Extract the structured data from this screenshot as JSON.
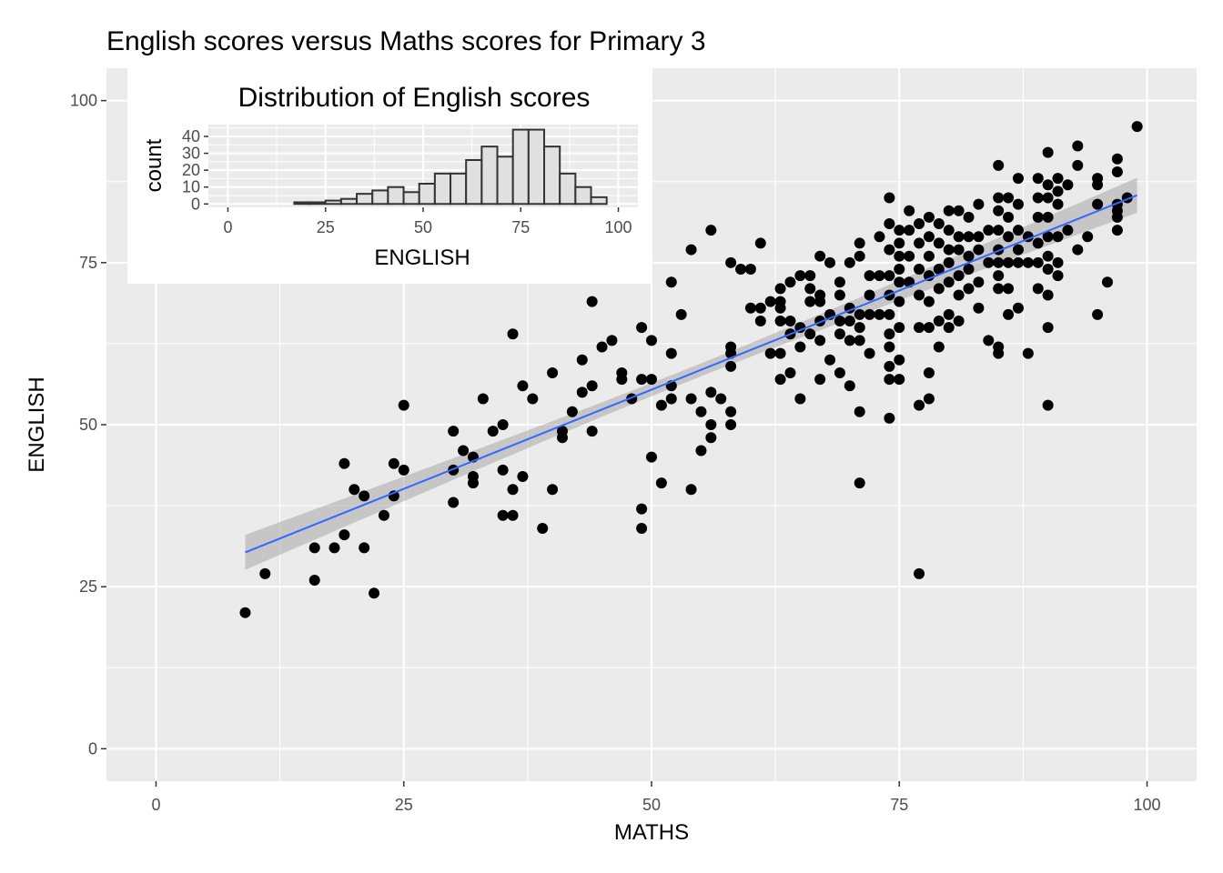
{
  "chart_data": [
    {
      "type": "scatter",
      "title": "English scores versus Maths scores for Primary 3",
      "xlabel": "MATHS",
      "ylabel": "ENGLISH",
      "xlim": [
        -5,
        105
      ],
      "ylim": [
        -5,
        105
      ],
      "x_ticks": [
        0,
        25,
        50,
        75,
        100
      ],
      "y_ticks": [
        0,
        25,
        50,
        75,
        100
      ],
      "grid": true,
      "fit_line": {
        "method": "lm",
        "x": [
          9,
          99
        ],
        "y": [
          30.3,
          85.4
        ],
        "ci_half_width_ends": 2.7,
        "ci_half_width_mid": 1.0,
        "color": "#3366ff",
        "band_color": "#999999"
      },
      "points": [
        [
          9,
          21
        ],
        [
          11,
          27
        ],
        [
          16,
          26
        ],
        [
          16,
          31
        ],
        [
          18,
          31
        ],
        [
          19,
          44
        ],
        [
          19,
          33
        ],
        [
          20,
          40
        ],
        [
          21,
          39
        ],
        [
          21,
          31
        ],
        [
          22,
          24
        ],
        [
          23,
          36
        ],
        [
          24,
          44
        ],
        [
          24,
          39
        ],
        [
          25,
          43
        ],
        [
          25,
          53
        ],
        [
          30,
          49
        ],
        [
          30,
          43
        ],
        [
          30,
          38
        ],
        [
          31,
          46
        ],
        [
          32,
          45
        ],
        [
          32,
          42
        ],
        [
          32,
          41
        ],
        [
          33,
          54
        ],
        [
          34,
          49
        ],
        [
          35,
          50
        ],
        [
          35,
          43
        ],
        [
          35,
          36
        ],
        [
          36,
          64
        ],
        [
          36,
          40
        ],
        [
          36,
          36
        ],
        [
          37,
          56
        ],
        [
          37,
          42
        ],
        [
          38,
          54
        ],
        [
          39,
          34
        ],
        [
          40,
          58
        ],
        [
          40,
          40
        ],
        [
          41,
          49
        ],
        [
          41,
          48
        ],
        [
          42,
          52
        ],
        [
          43,
          60
        ],
        [
          43,
          55
        ],
        [
          44,
          69
        ],
        [
          44,
          56
        ],
        [
          44,
          49
        ],
        [
          45,
          62
        ],
        [
          46,
          63
        ],
        [
          47,
          58
        ],
        [
          47,
          57
        ],
        [
          48,
          54
        ],
        [
          49,
          65
        ],
        [
          49,
          57
        ],
        [
          49,
          37
        ],
        [
          49,
          34
        ],
        [
          50,
          63
        ],
        [
          50,
          57
        ],
        [
          50,
          45
        ],
        [
          51,
          53
        ],
        [
          51,
          41
        ],
        [
          52,
          72
        ],
        [
          52,
          61
        ],
        [
          52,
          56
        ],
        [
          52,
          54
        ],
        [
          53,
          67
        ],
        [
          54,
          77
        ],
        [
          54,
          54
        ],
        [
          54,
          40
        ],
        [
          55,
          52
        ],
        [
          55,
          46
        ],
        [
          56,
          80
        ],
        [
          56,
          55
        ],
        [
          56,
          50
        ],
        [
          56,
          48
        ],
        [
          57,
          54
        ],
        [
          58,
          75
        ],
        [
          58,
          62
        ],
        [
          58,
          61
        ],
        [
          58,
          59
        ],
        [
          58,
          52
        ],
        [
          58,
          50
        ],
        [
          59,
          74
        ],
        [
          60,
          74
        ],
        [
          60,
          68
        ],
        [
          61,
          78
        ],
        [
          61,
          68
        ],
        [
          61,
          66
        ],
        [
          62,
          69
        ],
        [
          62,
          61
        ],
        [
          63,
          71
        ],
        [
          63,
          69
        ],
        [
          63,
          68
        ],
        [
          63,
          66
        ],
        [
          63,
          61
        ],
        [
          63,
          57
        ],
        [
          64,
          72
        ],
        [
          64,
          66
        ],
        [
          64,
          64
        ],
        [
          64,
          58
        ],
        [
          65,
          73
        ],
        [
          65,
          65
        ],
        [
          65,
          62
        ],
        [
          65,
          54
        ],
        [
          66,
          73
        ],
        [
          66,
          71
        ],
        [
          66,
          69
        ],
        [
          66,
          64
        ],
        [
          67,
          76
        ],
        [
          67,
          70
        ],
        [
          67,
          69
        ],
        [
          67,
          66
        ],
        [
          67,
          63
        ],
        [
          67,
          57
        ],
        [
          68,
          75
        ],
        [
          68,
          67
        ],
        [
          68,
          60
        ],
        [
          69,
          72
        ],
        [
          69,
          70
        ],
        [
          69,
          66
        ],
        [
          69,
          64
        ],
        [
          69,
          58
        ],
        [
          70,
          75
        ],
        [
          70,
          68
        ],
        [
          70,
          66
        ],
        [
          70,
          63
        ],
        [
          70,
          56
        ],
        [
          71,
          78
        ],
        [
          71,
          76
        ],
        [
          71,
          67
        ],
        [
          71,
          65
        ],
        [
          71,
          63
        ],
        [
          71,
          52
        ],
        [
          71,
          41
        ],
        [
          72,
          73
        ],
        [
          72,
          70
        ],
        [
          72,
          67
        ],
        [
          72,
          61
        ],
        [
          73,
          79
        ],
        [
          73,
          73
        ],
        [
          73,
          67
        ],
        [
          74,
          85
        ],
        [
          74,
          81
        ],
        [
          74,
          77
        ],
        [
          74,
          73
        ],
        [
          74,
          70
        ],
        [
          74,
          67
        ],
        [
          74,
          64
        ],
        [
          74,
          62
        ],
        [
          74,
          59
        ],
        [
          74,
          57
        ],
        [
          74,
          51
        ],
        [
          75,
          80
        ],
        [
          75,
          78
        ],
        [
          75,
          76
        ],
        [
          75,
          74
        ],
        [
          75,
          72
        ],
        [
          75,
          69
        ],
        [
          75,
          65
        ],
        [
          75,
          60
        ],
        [
          75,
          57
        ],
        [
          76,
          83
        ],
        [
          76,
          80
        ],
        [
          76,
          76
        ],
        [
          76,
          72
        ],
        [
          77,
          81
        ],
        [
          77,
          78
        ],
        [
          77,
          74
        ],
        [
          77,
          70
        ],
        [
          77,
          65
        ],
        [
          77,
          53
        ],
        [
          77,
          27
        ],
        [
          78,
          82
        ],
        [
          78,
          79
        ],
        [
          78,
          76
        ],
        [
          78,
          73
        ],
        [
          78,
          69
        ],
        [
          78,
          65
        ],
        [
          78,
          58
        ],
        [
          78,
          54
        ],
        [
          79,
          81
        ],
        [
          79,
          78
        ],
        [
          79,
          74
        ],
        [
          79,
          71
        ],
        [
          79,
          66
        ],
        [
          79,
          62
        ],
        [
          80,
          83
        ],
        [
          80,
          80
        ],
        [
          80,
          77
        ],
        [
          80,
          75
        ],
        [
          80,
          72
        ],
        [
          80,
          67
        ],
        [
          80,
          65
        ],
        [
          81,
          83
        ],
        [
          81,
          79
        ],
        [
          81,
          77
        ],
        [
          81,
          73
        ],
        [
          81,
          70
        ],
        [
          81,
          66
        ],
        [
          82,
          82
        ],
        [
          82,
          79
        ],
        [
          82,
          76
        ],
        [
          82,
          74
        ],
        [
          82,
          71
        ],
        [
          83,
          84
        ],
        [
          83,
          79
        ],
        [
          83,
          77
        ],
        [
          83,
          72
        ],
        [
          83,
          68
        ],
        [
          84,
          80
        ],
        [
          84,
          75
        ],
        [
          84,
          63
        ],
        [
          85,
          90
        ],
        [
          85,
          85
        ],
        [
          85,
          83
        ],
        [
          85,
          80
        ],
        [
          85,
          77
        ],
        [
          85,
          75
        ],
        [
          85,
          73
        ],
        [
          85,
          71
        ],
        [
          85,
          62
        ],
        [
          85,
          61
        ],
        [
          86,
          85
        ],
        [
          86,
          82
        ],
        [
          86,
          79
        ],
        [
          86,
          75
        ],
        [
          86,
          71
        ],
        [
          86,
          67
        ],
        [
          87,
          88
        ],
        [
          87,
          84
        ],
        [
          87,
          80
        ],
        [
          87,
          77
        ],
        [
          87,
          75
        ],
        [
          87,
          68
        ],
        [
          88,
          79
        ],
        [
          88,
          75
        ],
        [
          88,
          61
        ],
        [
          89,
          88
        ],
        [
          89,
          85
        ],
        [
          89,
          82
        ],
        [
          89,
          78
        ],
        [
          89,
          75
        ],
        [
          89,
          71
        ],
        [
          90,
          92
        ],
        [
          90,
          87
        ],
        [
          90,
          85
        ],
        [
          90,
          82
        ],
        [
          90,
          79
        ],
        [
          90,
          76
        ],
        [
          90,
          74
        ],
        [
          90,
          70
        ],
        [
          90,
          65
        ],
        [
          90,
          53
        ],
        [
          91,
          88
        ],
        [
          91,
          86
        ],
        [
          91,
          84
        ],
        [
          91,
          79
        ],
        [
          91,
          75
        ],
        [
          91,
          73
        ],
        [
          92,
          87
        ],
        [
          92,
          80
        ],
        [
          93,
          93
        ],
        [
          93,
          90
        ],
        [
          93,
          77
        ],
        [
          94,
          79
        ],
        [
          95,
          88
        ],
        [
          95,
          87
        ],
        [
          95,
          84
        ],
        [
          95,
          67
        ],
        [
          96,
          72
        ],
        [
          97,
          91
        ],
        [
          97,
          89
        ],
        [
          97,
          84
        ],
        [
          97,
          83
        ],
        [
          97,
          82
        ],
        [
          97,
          80
        ],
        [
          98,
          85
        ],
        [
          99,
          96
        ]
      ]
    },
    {
      "type": "bar",
      "subtype": "histogram",
      "title": "Distribution of English scores",
      "xlabel": "ENGLISH",
      "ylabel": "count",
      "xlim": [
        -5,
        105
      ],
      "ylim": [
        -2,
        47
      ],
      "x_ticks": [
        0,
        25,
        50,
        75,
        100
      ],
      "y_ticks": [
        0,
        10,
        20,
        30,
        40
      ],
      "y_minor_ticks": [
        5,
        15,
        25,
        35,
        45
      ],
      "bin_width": 4,
      "bin_starts": [
        17,
        21,
        25,
        29,
        33,
        37,
        41,
        45,
        49,
        53,
        57,
        61,
        65,
        69,
        73,
        77,
        81,
        85,
        89,
        93
      ],
      "values": [
        1,
        1,
        2,
        3,
        6,
        8,
        10,
        7,
        12,
        18,
        18,
        26,
        34,
        28,
        44,
        44,
        34,
        18,
        10,
        4
      ],
      "fill": "#e0e0e0",
      "outline": "#333333"
    }
  ]
}
